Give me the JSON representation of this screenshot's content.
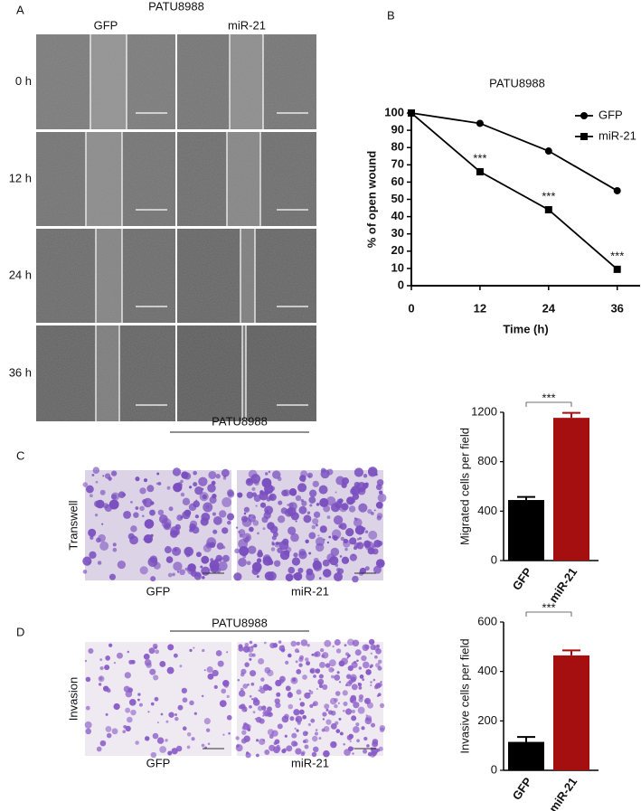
{
  "panel_a": {
    "label": "A",
    "title": "PATU8988",
    "columns": [
      "GFP",
      "miR-21"
    ],
    "rows": [
      "0 h",
      "12 h",
      "24 h",
      "36 h"
    ]
  },
  "panel_b": {
    "label": "B"
  },
  "panel_c": {
    "label": "C",
    "title": "PATU8988",
    "row_label": "Transwell",
    "columns": [
      "GFP",
      "miR-21"
    ]
  },
  "panel_d": {
    "label": "D",
    "title": "PATU8988",
    "row_label": "Invasion",
    "columns": [
      "GFP",
      "miR-21"
    ]
  },
  "chart_data": [
    {
      "type": "line",
      "title": "PATU8988",
      "x_label": "Time (h)",
      "y_label": "% of open wound",
      "x": [
        0,
        12,
        24,
        36
      ],
      "series": [
        {
          "name": "GFP",
          "color": "#000000",
          "marker": "circle",
          "values": [
            100,
            94,
            78,
            55
          ]
        },
        {
          "name": "miR-21",
          "color": "#000000",
          "marker": "square",
          "values": [
            100,
            66,
            44,
            9.5
          ]
        }
      ],
      "annotations": [
        {
          "text": "***",
          "x": 12
        },
        {
          "text": "***",
          "x": 24
        },
        {
          "text": "***",
          "x": 36
        }
      ],
      "xlim": [
        0,
        40
      ],
      "xticks": [
        0,
        12,
        24,
        36
      ],
      "ylim": [
        0,
        100
      ],
      "yticks": [
        0,
        10,
        20,
        30,
        40,
        50,
        60,
        70,
        80,
        90,
        100
      ],
      "legend": "top-right"
    },
    {
      "type": "bar",
      "y_label": "Migrated cells per field",
      "categories": [
        "GFP",
        "miR-21"
      ],
      "values": [
        490,
        1155
      ],
      "errors": [
        25,
        40
      ],
      "colors": [
        "#000000",
        "#a50f0f"
      ],
      "significance": "***",
      "ylim": [
        0,
        1200
      ],
      "yticks": [
        0,
        400,
        800,
        1200
      ]
    },
    {
      "type": "bar",
      "y_label": "Invasive cells per field",
      "categories": [
        "GFP",
        "miR-21"
      ],
      "values": [
        115,
        465
      ],
      "errors": [
        20,
        20
      ],
      "colors": [
        "#000000",
        "#a50f0f"
      ],
      "significance": "***",
      "ylim": [
        0,
        600
      ],
      "yticks": [
        0,
        200,
        400,
        600
      ]
    }
  ]
}
